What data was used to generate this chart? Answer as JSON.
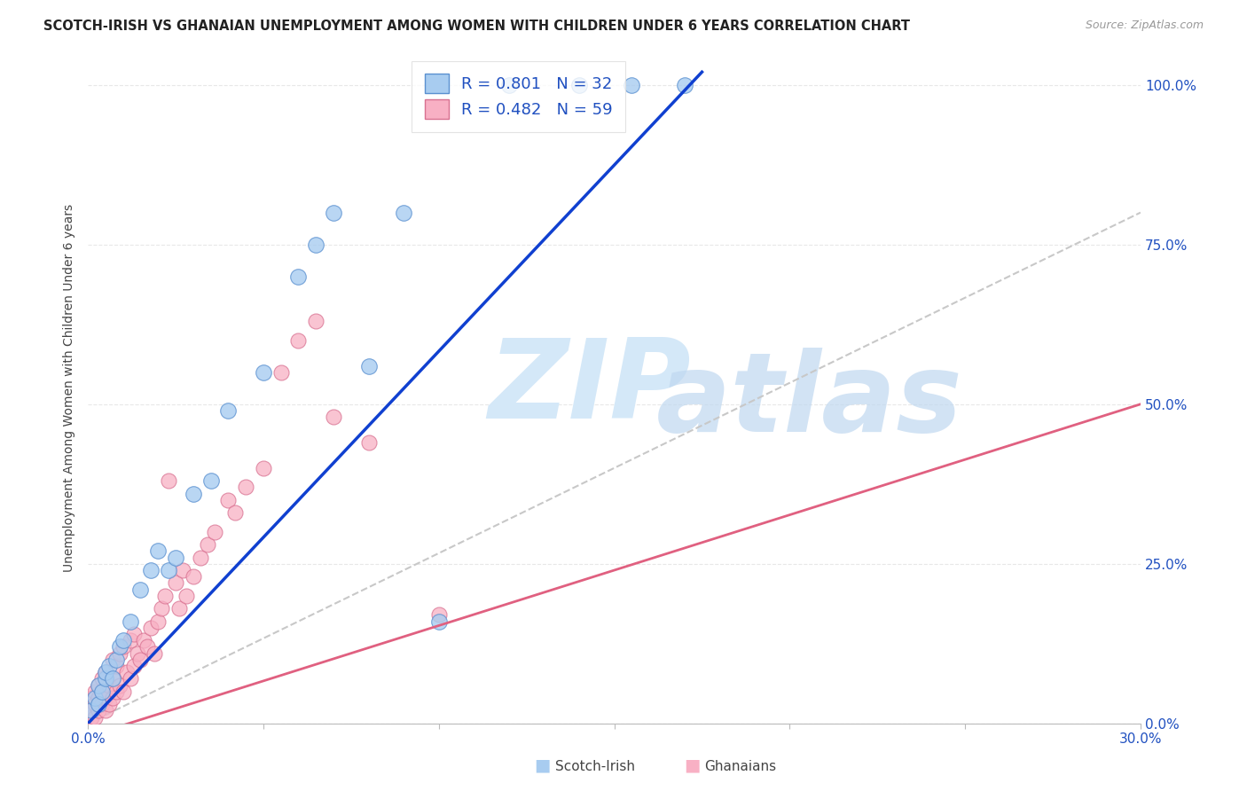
{
  "title": "SCOTCH-IRISH VS GHANAIAN UNEMPLOYMENT AMONG WOMEN WITH CHILDREN UNDER 6 YEARS CORRELATION CHART",
  "source": "Source: ZipAtlas.com",
  "ylabel": "Unemployment Among Women with Children Under 6 years",
  "yaxis_ticks": [
    0.0,
    0.25,
    0.5,
    0.75,
    1.0
  ],
  "yaxis_labels": [
    "0.0%",
    "25.0%",
    "50.0%",
    "75.0%",
    "100.0%"
  ],
  "xtick_vals": [
    0.0,
    0.05,
    0.1,
    0.15,
    0.2,
    0.25,
    0.3
  ],
  "xtick_labels": [
    "0.0%",
    "",
    "",
    "",
    "",
    "",
    "30.0%"
  ],
  "xmin": 0.0,
  "xmax": 0.3,
  "ymin": 0.0,
  "ymax": 1.05,
  "scotch_irish_R": 0.801,
  "scotch_irish_N": 32,
  "ghanaian_R": 0.482,
  "ghanaian_N": 59,
  "legend_label_1": "Scotch-Irish",
  "legend_label_2": "Ghanaians",
  "scotch_irish_color": "#A8CCF0",
  "scotch_irish_edge": "#5A90D0",
  "ghanaian_color": "#F8B0C4",
  "ghanaian_edge": "#D87090",
  "blue_line_color": "#1040D0",
  "pink_line_color": "#E06080",
  "ref_line_color": "#C8C8C8",
  "label_color": "#2050C0",
  "grid_color": "#E8E8E8",
  "title_color": "#222222",
  "source_color": "#999999",
  "watermark_zip_color": "#D4E8F8",
  "watermark_atlas_color": "#C0D8F0",
  "scotch_irish_x": [
    0.001,
    0.002,
    0.003,
    0.003,
    0.004,
    0.005,
    0.005,
    0.006,
    0.007,
    0.008,
    0.009,
    0.01,
    0.012,
    0.015,
    0.018,
    0.02,
    0.023,
    0.025,
    0.03,
    0.035,
    0.04,
    0.05,
    0.06,
    0.065,
    0.07,
    0.08,
    0.09,
    0.1,
    0.12,
    0.14,
    0.155,
    0.17
  ],
  "scotch_irish_y": [
    0.02,
    0.04,
    0.03,
    0.06,
    0.05,
    0.07,
    0.08,
    0.09,
    0.07,
    0.1,
    0.12,
    0.13,
    0.16,
    0.21,
    0.24,
    0.27,
    0.24,
    0.26,
    0.36,
    0.38,
    0.49,
    0.55,
    0.7,
    0.75,
    0.8,
    0.56,
    0.8,
    0.16,
    1.0,
    1.0,
    1.0,
    1.0
  ],
  "ghanaian_x": [
    0.001,
    0.001,
    0.001,
    0.002,
    0.002,
    0.002,
    0.003,
    0.003,
    0.003,
    0.004,
    0.004,
    0.004,
    0.005,
    0.005,
    0.005,
    0.006,
    0.006,
    0.007,
    0.007,
    0.007,
    0.008,
    0.008,
    0.009,
    0.009,
    0.01,
    0.01,
    0.011,
    0.012,
    0.012,
    0.013,
    0.013,
    0.014,
    0.015,
    0.016,
    0.017,
    0.018,
    0.019,
    0.02,
    0.021,
    0.022,
    0.023,
    0.025,
    0.026,
    0.027,
    0.028,
    0.03,
    0.032,
    0.034,
    0.036,
    0.04,
    0.042,
    0.045,
    0.05,
    0.055,
    0.06,
    0.065,
    0.07,
    0.08,
    0.1
  ],
  "ghanaian_y": [
    0.01,
    0.02,
    0.04,
    0.01,
    0.03,
    0.05,
    0.02,
    0.04,
    0.06,
    0.03,
    0.05,
    0.07,
    0.02,
    0.04,
    0.08,
    0.03,
    0.06,
    0.04,
    0.07,
    0.1,
    0.05,
    0.09,
    0.06,
    0.11,
    0.05,
    0.12,
    0.08,
    0.07,
    0.13,
    0.09,
    0.14,
    0.11,
    0.1,
    0.13,
    0.12,
    0.15,
    0.11,
    0.16,
    0.18,
    0.2,
    0.38,
    0.22,
    0.18,
    0.24,
    0.2,
    0.23,
    0.26,
    0.28,
    0.3,
    0.35,
    0.33,
    0.37,
    0.4,
    0.55,
    0.6,
    0.63,
    0.48,
    0.44,
    0.17
  ],
  "blue_line_x": [
    0.0,
    0.175
  ],
  "blue_line_y": [
    0.0,
    1.02
  ],
  "pink_line_x": [
    0.0,
    0.3
  ],
  "pink_line_y": [
    -0.02,
    0.5
  ],
  "ref_line_x": [
    0.0,
    0.3
  ],
  "ref_line_y": [
    0.0,
    0.8
  ]
}
